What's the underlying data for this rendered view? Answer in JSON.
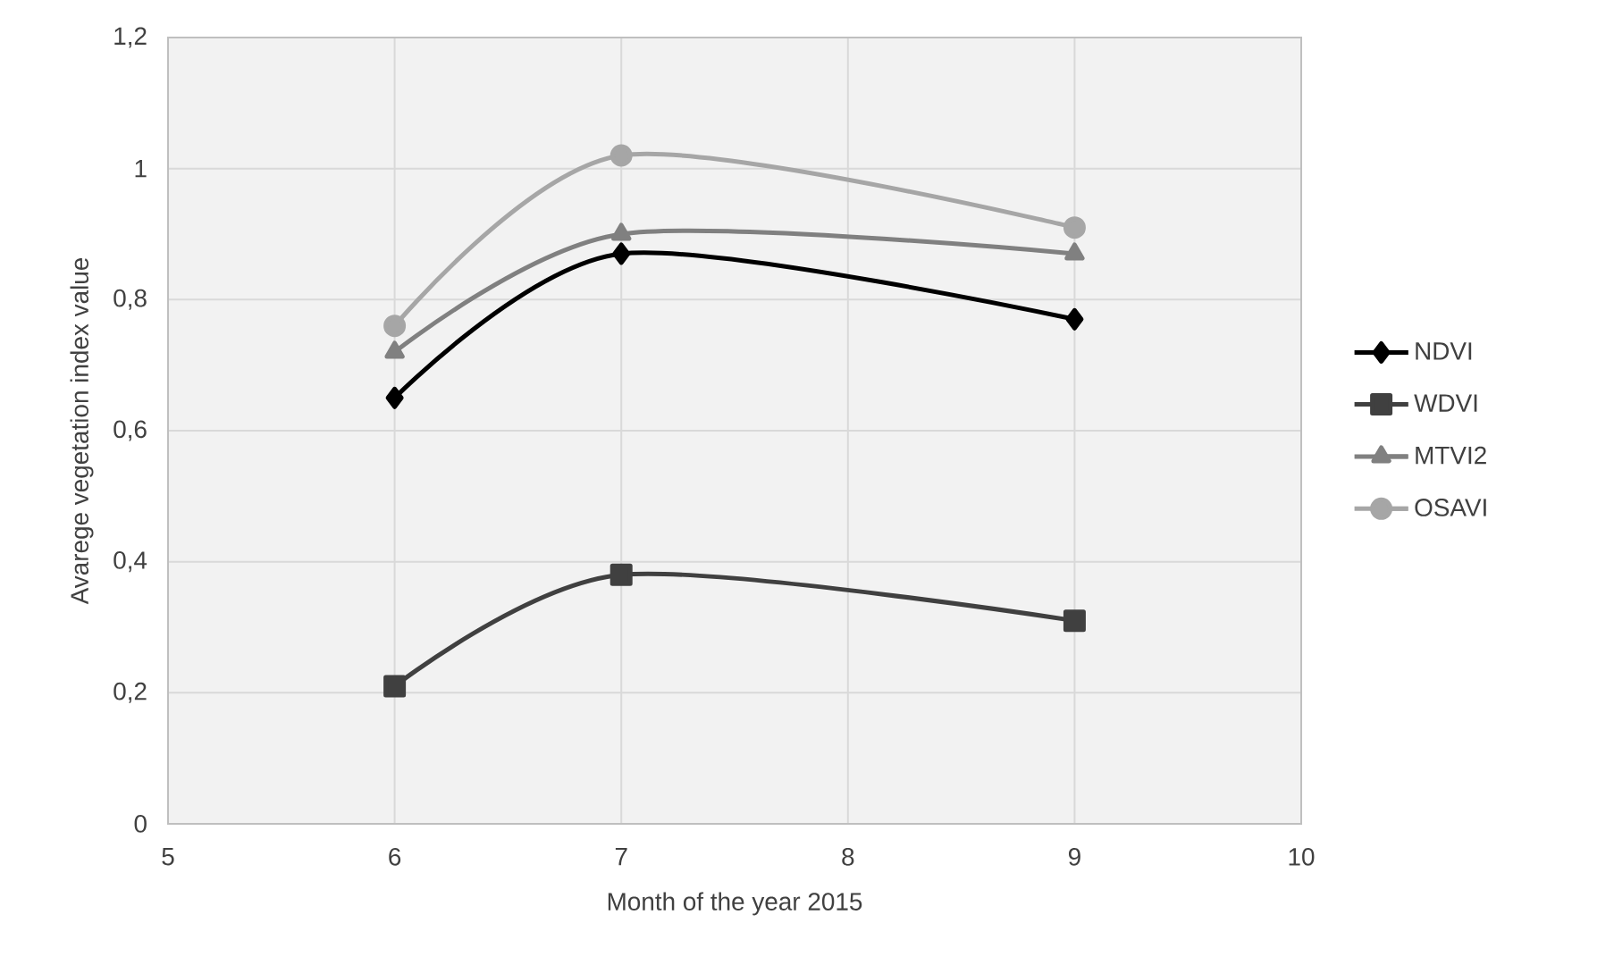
{
  "chart_data": {
    "type": "line",
    "xlabel": "Month of the year 2015",
    "ylabel": "Avarege vegetation index value",
    "x": [
      6,
      7,
      9
    ],
    "series": [
      {
        "name": "NDVI",
        "color": "#000000",
        "marker": "diamond",
        "values": [
          0.65,
          0.87,
          0.77
        ]
      },
      {
        "name": "WDVI",
        "color": "#404040",
        "marker": "square",
        "values": [
          0.21,
          0.38,
          0.31
        ]
      },
      {
        "name": "MTVI2",
        "color": "#808080",
        "marker": "triangle",
        "values": [
          0.72,
          0.9,
          0.87
        ]
      },
      {
        "name": "OSAVI",
        "color": "#a6a6a6",
        "marker": "circle",
        "values": [
          0.76,
          1.02,
          0.91
        ]
      }
    ],
    "xlim": [
      5,
      10
    ],
    "xticks": [
      5,
      6,
      7,
      8,
      9,
      10
    ],
    "ylim": [
      0,
      1.2
    ],
    "yticks": [
      0,
      {
        "value": 0.2,
        "label": "0,2"
      },
      {
        "value": 0.4,
        "label": "0,4"
      },
      {
        "value": 0.6,
        "label": "0,6"
      },
      {
        "value": 0.8,
        "label": "0,8"
      },
      1,
      {
        "value": 1.2,
        "label": "1,2"
      }
    ],
    "grid": true,
    "legend": "right",
    "line_style": "solid"
  }
}
